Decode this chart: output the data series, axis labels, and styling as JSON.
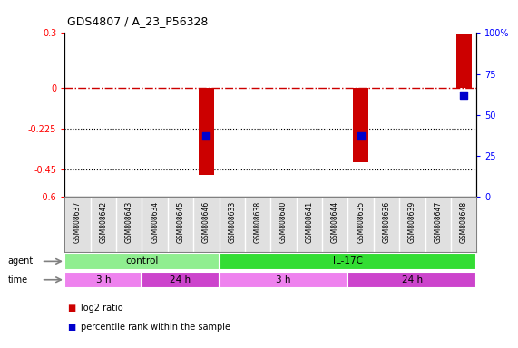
{
  "title": "GDS4807 / A_23_P56328",
  "samples": [
    "GSM808637",
    "GSM808642",
    "GSM808643",
    "GSM808634",
    "GSM808645",
    "GSM808646",
    "GSM808633",
    "GSM808638",
    "GSM808640",
    "GSM808641",
    "GSM808644",
    "GSM808635",
    "GSM808636",
    "GSM808639",
    "GSM808647",
    "GSM808648"
  ],
  "log2_ratios": [
    0,
    0,
    0,
    0,
    0,
    -0.48,
    0,
    0,
    0,
    0,
    0,
    -0.41,
    0,
    0,
    0,
    0.29
  ],
  "percentile_ranks": [
    null,
    null,
    null,
    null,
    null,
    37,
    null,
    null,
    null,
    null,
    null,
    37,
    null,
    null,
    null,
    62
  ],
  "ylim_left": [
    -0.6,
    0.3
  ],
  "ylim_right": [
    0,
    100
  ],
  "yticks_left": [
    -0.6,
    -0.45,
    -0.225,
    0,
    0.3
  ],
  "ytick_labels_left": [
    "-0.6",
    "-0.45",
    "-0.225",
    "0",
    "0.3"
  ],
  "yticks_right": [
    0,
    25,
    50,
    75,
    100
  ],
  "ytick_labels_right": [
    "0",
    "25",
    "50",
    "75",
    "100%"
  ],
  "hline_y": 0,
  "dotted_lines": [
    -0.225,
    -0.45
  ],
  "agent_groups": [
    {
      "label": "control",
      "start": 0,
      "end": 6,
      "color": "#90EE90"
    },
    {
      "label": "IL-17C",
      "start": 6,
      "end": 16,
      "color": "#33DD33"
    }
  ],
  "time_groups": [
    {
      "label": "3 h",
      "start": 0,
      "end": 3,
      "color": "#EE82EE"
    },
    {
      "label": "24 h",
      "start": 3,
      "end": 6,
      "color": "#CC44CC"
    },
    {
      "label": "3 h",
      "start": 6,
      "end": 11,
      "color": "#EE82EE"
    },
    {
      "label": "24 h",
      "start": 11,
      "end": 16,
      "color": "#CC44CC"
    }
  ],
  "bar_color": "#CC0000",
  "percentile_color": "#0000CC",
  "dashed_line_color": "#CC0000",
  "legend_items": [
    {
      "label": "log2 ratio",
      "color": "#CC0000"
    },
    {
      "label": "percentile rank within the sample",
      "color": "#0000CC"
    }
  ],
  "bar_width": 0.6,
  "percentile_marker_size": 30
}
